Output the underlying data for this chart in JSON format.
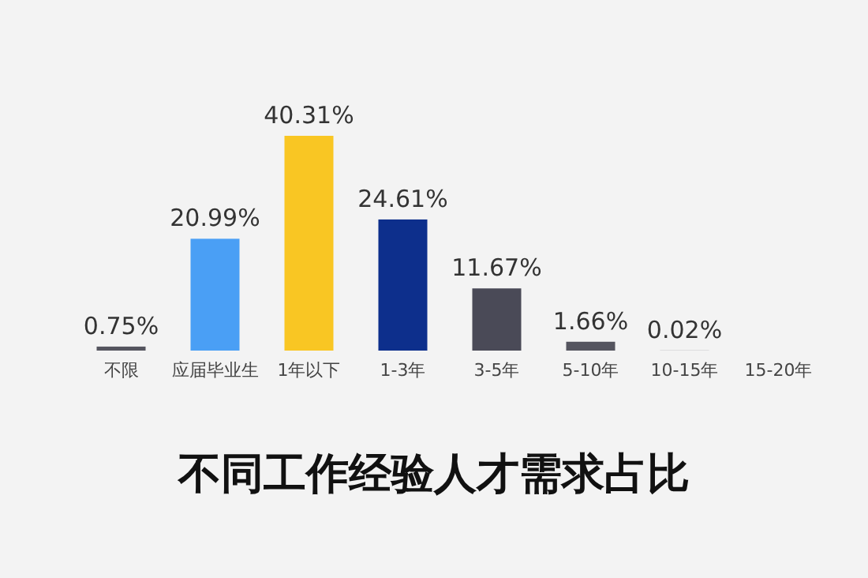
{
  "chart_data": {
    "type": "bar",
    "title": "不同工作经验人才需求占比",
    "categories": [
      "不限",
      "应届毕业生",
      "1年以下",
      "1-3年",
      "3-5年",
      "5-10年",
      "10-15年",
      "15-20年"
    ],
    "values": [
      0.75,
      20.99,
      40.31,
      24.61,
      11.67,
      1.66,
      0.02,
      null
    ],
    "value_labels": [
      "0.75%",
      "20.99%",
      "40.31%",
      "24.61%",
      "11.67%",
      "1.66%",
      "0.02%",
      null
    ],
    "colors": [
      "#55555f",
      "#4a9ff5",
      "#f9c623",
      "#0d2f8c",
      "#4a4a57",
      "#55555f",
      "#55555f",
      "#55555f"
    ]
  }
}
